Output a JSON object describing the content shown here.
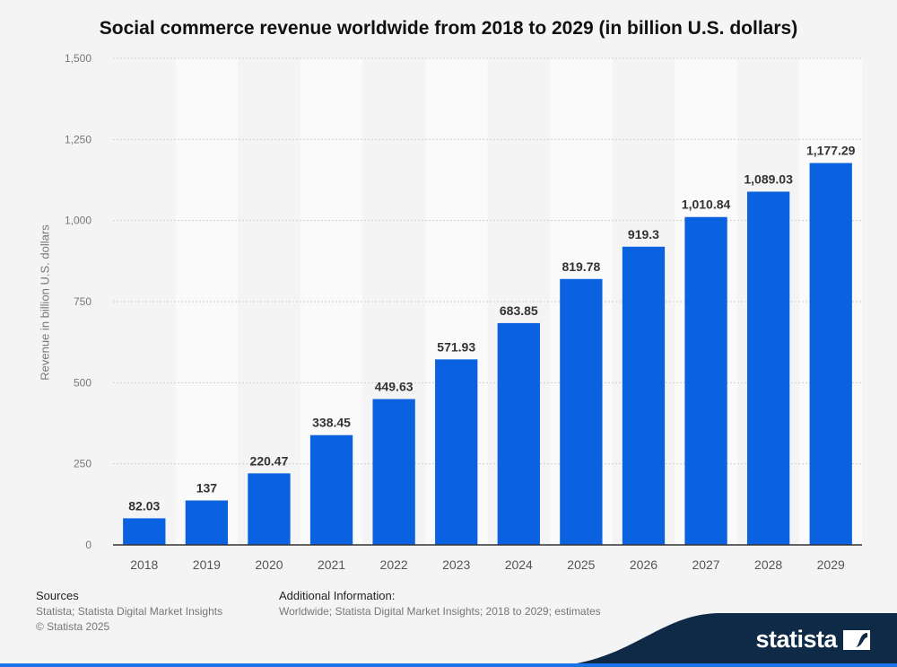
{
  "title": "Social commerce revenue worldwide from 2018 to 2029 (in billion U.S. dollars)",
  "colors": {
    "bar": "#0a62e0",
    "grid": "#cfcfcf",
    "band": "#fafafa",
    "axis": "#333333",
    "brand": "#0e2a47",
    "accent": "#1a73e8"
  },
  "footer": {
    "sources_heading": "Sources",
    "sources_text": "Statista; Statista Digital Market Insights",
    "copyright": "© Statista 2025",
    "info_heading": "Additional Information:",
    "info_text": "Worldwide; Statista Digital Market Insights; 2018 to 2029; estimates"
  },
  "brand": {
    "name": "statista"
  },
  "chart_data": {
    "type": "bar",
    "title": "Social commerce revenue worldwide from 2018 to 2029 (in billion U.S. dollars)",
    "ylabel": "Revenue in billion U.S. dollars",
    "xlabel": "",
    "categories": [
      "2018",
      "2019",
      "2020",
      "2021",
      "2022",
      "2023",
      "2024",
      "2025",
      "2026",
      "2027",
      "2028",
      "2029"
    ],
    "values": [
      82.03,
      137,
      220.47,
      338.45,
      449.63,
      571.93,
      683.85,
      819.78,
      919.3,
      1010.84,
      1089.03,
      1177.29
    ],
    "value_labels": [
      "82.03",
      "137",
      "220.47",
      "338.45",
      "449.63",
      "571.93",
      "683.85",
      "819.78",
      "919.3",
      "1,010.84",
      "1,089.03",
      "1,177.29"
    ],
    "ylim": [
      0,
      1500
    ],
    "yticks": [
      0,
      250,
      500,
      750,
      1000,
      1250,
      1500
    ],
    "ytick_labels": [
      "0",
      "250",
      "500",
      "750",
      "1,000",
      "1,250",
      "1,500"
    ],
    "grid": true,
    "legend": "none"
  }
}
